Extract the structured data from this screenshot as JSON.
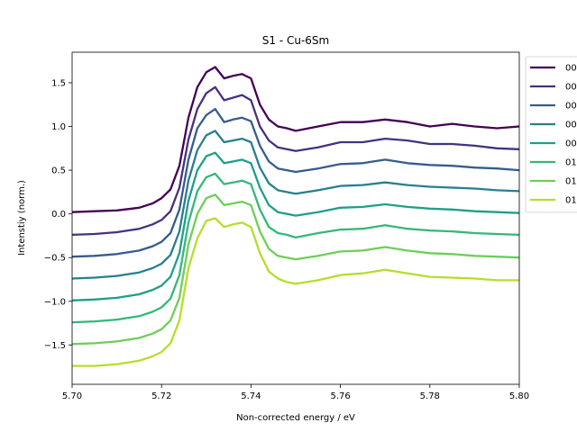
{
  "chart_data": {
    "type": "line",
    "title": "S1 - Cu-6Sm",
    "xlabel": "Non-corrected energy / eV",
    "ylabel": "Intenstiy (norm.)",
    "xlim": [
      5.7,
      5.8
    ],
    "ylim": [
      -1.95,
      1.85
    ],
    "x_ticks": [
      5.7,
      5.72,
      5.74,
      5.76,
      5.78,
      5.8
    ],
    "x_tick_labels": [
      "5.70",
      "5.72",
      "5.74",
      "5.76",
      "5.78",
      "5.80"
    ],
    "y_ticks": [
      -1.5,
      -1.0,
      -0.5,
      0.0,
      0.5,
      1.0,
      1.5
    ],
    "y_tick_labels": [
      "−1.5",
      "−1.0",
      "−0.5",
      "0.0",
      "0.5",
      "1.0",
      "1.5"
    ],
    "legend_position": "outside-top-right",
    "grid": false,
    "x": [
      5.7,
      5.705,
      5.71,
      5.715,
      5.718,
      5.72,
      5.722,
      5.724,
      5.726,
      5.728,
      5.73,
      5.732,
      5.734,
      5.736,
      5.738,
      5.74,
      5.742,
      5.744,
      5.746,
      5.748,
      5.75,
      5.755,
      5.76,
      5.765,
      5.77,
      5.775,
      5.78,
      5.785,
      5.79,
      5.795,
      5.8
    ],
    "series": [
      {
        "name": "00",
        "color": "#440154",
        "values": [
          0.02,
          0.03,
          0.04,
          0.07,
          0.12,
          0.18,
          0.28,
          0.55,
          1.1,
          1.45,
          1.62,
          1.68,
          1.55,
          1.58,
          1.6,
          1.55,
          1.25,
          1.08,
          1.0,
          0.98,
          0.95,
          1.0,
          1.05,
          1.05,
          1.08,
          1.05,
          1.0,
          1.03,
          1.0,
          0.98,
          1.0
        ]
      },
      {
        "name": "00",
        "color": "#46327e",
        "values": [
          -0.24,
          -0.23,
          -0.21,
          -0.17,
          -0.12,
          -0.07,
          0.03,
          0.3,
          0.85,
          1.2,
          1.38,
          1.45,
          1.3,
          1.33,
          1.36,
          1.3,
          1.0,
          0.84,
          0.76,
          0.74,
          0.72,
          0.76,
          0.82,
          0.82,
          0.86,
          0.84,
          0.8,
          0.8,
          0.78,
          0.75,
          0.74
        ]
      },
      {
        "name": "00",
        "color": "#365c8d",
        "values": [
          -0.49,
          -0.48,
          -0.46,
          -0.42,
          -0.37,
          -0.32,
          -0.22,
          0.05,
          0.62,
          0.98,
          1.13,
          1.2,
          1.05,
          1.08,
          1.1,
          1.06,
          0.78,
          0.6,
          0.52,
          0.5,
          0.48,
          0.52,
          0.57,
          0.58,
          0.62,
          0.58,
          0.56,
          0.55,
          0.53,
          0.52,
          0.5
        ]
      },
      {
        "name": "00",
        "color": "#277f8e",
        "values": [
          -0.74,
          -0.73,
          -0.71,
          -0.67,
          -0.62,
          -0.57,
          -0.47,
          -0.2,
          0.38,
          0.73,
          0.9,
          0.95,
          0.82,
          0.84,
          0.86,
          0.82,
          0.53,
          0.35,
          0.27,
          0.25,
          0.23,
          0.27,
          0.32,
          0.33,
          0.36,
          0.33,
          0.31,
          0.3,
          0.29,
          0.27,
          0.26
        ]
      },
      {
        "name": "00",
        "color": "#1f9e89",
        "values": [
          -0.99,
          -0.98,
          -0.96,
          -0.92,
          -0.87,
          -0.82,
          -0.72,
          -0.45,
          0.15,
          0.5,
          0.66,
          0.7,
          0.58,
          0.6,
          0.62,
          0.58,
          0.3,
          0.1,
          0.02,
          0.0,
          -0.02,
          0.02,
          0.07,
          0.08,
          0.11,
          0.08,
          0.06,
          0.05,
          0.03,
          0.02,
          0.01
        ]
      },
      {
        "name": "01",
        "color": "#35b779",
        "values": [
          -1.24,
          -1.23,
          -1.21,
          -1.17,
          -1.12,
          -1.07,
          -0.97,
          -0.7,
          -0.1,
          0.26,
          0.42,
          0.46,
          0.34,
          0.36,
          0.38,
          0.34,
          0.05,
          -0.15,
          -0.22,
          -0.24,
          -0.27,
          -0.22,
          -0.18,
          -0.17,
          -0.13,
          -0.17,
          -0.19,
          -0.2,
          -0.22,
          -0.23,
          -0.24
        ]
      },
      {
        "name": "01",
        "color": "#6ece58",
        "values": [
          -1.49,
          -1.48,
          -1.46,
          -1.42,
          -1.37,
          -1.32,
          -1.22,
          -0.96,
          -0.35,
          0.0,
          0.18,
          0.22,
          0.1,
          0.12,
          0.14,
          0.1,
          -0.2,
          -0.4,
          -0.48,
          -0.5,
          -0.52,
          -0.48,
          -0.43,
          -0.42,
          -0.38,
          -0.42,
          -0.45,
          -0.46,
          -0.48,
          -0.49,
          -0.5
        ]
      },
      {
        "name": "01",
        "color": "#b5de2b",
        "values": [
          -1.74,
          -1.74,
          -1.72,
          -1.68,
          -1.63,
          -1.58,
          -1.48,
          -1.22,
          -0.62,
          -0.28,
          -0.08,
          -0.05,
          -0.15,
          -0.12,
          -0.1,
          -0.15,
          -0.45,
          -0.66,
          -0.74,
          -0.78,
          -0.8,
          -0.76,
          -0.7,
          -0.68,
          -0.64,
          -0.68,
          -0.72,
          -0.73,
          -0.74,
          -0.76,
          -0.76
        ]
      }
    ]
  }
}
